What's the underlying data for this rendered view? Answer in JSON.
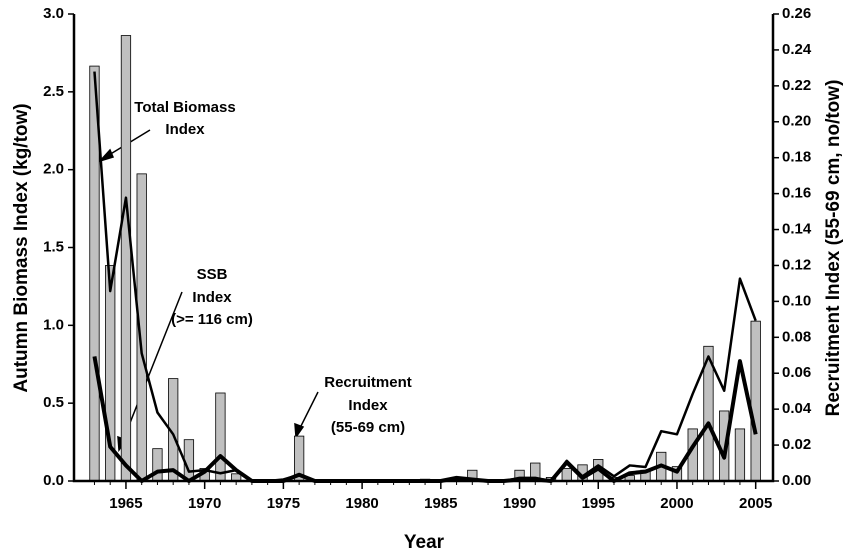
{
  "chart_data": {
    "type": "combo",
    "xlabel": "Year",
    "ylabel": "Autumn Biomass Index (kg/tow)",
    "y2label": "Recruitment Index (55-69 cm, no/tow)",
    "x": [
      1963,
      1964,
      1965,
      1966,
      1967,
      1968,
      1969,
      1970,
      1971,
      1972,
      1973,
      1974,
      1975,
      1976,
      1977,
      1978,
      1979,
      1980,
      1981,
      1982,
      1983,
      1984,
      1985,
      1986,
      1987,
      1988,
      1989,
      1990,
      1991,
      1992,
      1993,
      1994,
      1995,
      1996,
      1997,
      1998,
      1999,
      2000,
      2001,
      2002,
      2003,
      2004,
      2005
    ],
    "xlim": [
      1961.7,
      2006.1
    ],
    "xticks": [
      1965,
      1970,
      1975,
      1980,
      1985,
      1990,
      1995,
      2000,
      2005
    ],
    "ylim": [
      0,
      3
    ],
    "yticks": [
      {
        "value": 0,
        "label": "0.0"
      },
      0.5,
      {
        "value": 1,
        "label": "1.0"
      },
      1.5,
      {
        "value": 2,
        "label": "2.0"
      },
      2.5,
      {
        "value": 3,
        "label": "3.0"
      }
    ],
    "y2lim": [
      0,
      0.26
    ],
    "y2ticks": [
      {
        "value": 0,
        "label": "0.00"
      },
      0.02,
      0.04,
      0.06,
      0.08,
      {
        "value": 0.1,
        "label": "0.10"
      },
      0.12,
      0.14,
      0.16,
      0.18,
      {
        "value": 0.2,
        "label": "0.20"
      },
      0.22,
      0.24,
      0.26
    ],
    "series": [
      {
        "name": "Recruitment Index",
        "type": "bar",
        "axis": "y2",
        "color": "#c0c0c0",
        "values": [
          0.231,
          0.12,
          0.248,
          0.171,
          0.018,
          0.057,
          0.023,
          0.007,
          0.049,
          0.004,
          0,
          0,
          0,
          0.025,
          0,
          0,
          0,
          0,
          0,
          0,
          0,
          0.001,
          0,
          0.002,
          0.006,
          0,
          0,
          0.006,
          0.01,
          0.002,
          0.007,
          0.009,
          0.012,
          0.002,
          0.003,
          0.006,
          0.016,
          0.008,
          0.029,
          0.075,
          0.039,
          0.029,
          0.089
        ]
      },
      {
        "name": "Total Biomass Index",
        "type": "line",
        "color": "#000000",
        "width": 2.5,
        "values": [
          2.63,
          1.22,
          1.82,
          0.82,
          0.44,
          0.3,
          0.06,
          0.07,
          0.05,
          0.07,
          0,
          0,
          0.01,
          0.04,
          0,
          0,
          0,
          0,
          0,
          0,
          0,
          0,
          0,
          0.02,
          0.01,
          0,
          0,
          0.02,
          0.02,
          0,
          0.13,
          0.03,
          0.1,
          0.03,
          0.1,
          0.09,
          0.32,
          0.3,
          0.56,
          0.8,
          0.58,
          1.3,
          1.03
        ]
      },
      {
        "name": "SSB Index",
        "type": "line",
        "color": "#000000",
        "width": 4,
        "values": [
          0.8,
          0.22,
          0.1,
          0,
          0.06,
          0.07,
          0,
          0.06,
          0.16,
          0.07,
          0,
          0,
          0,
          0.04,
          0,
          0,
          0,
          0,
          0,
          0,
          0,
          0,
          0,
          0.02,
          0.01,
          0,
          0,
          0.01,
          0.01,
          0,
          0.12,
          0.02,
          0.08,
          0,
          0.05,
          0.06,
          0.1,
          0.06,
          0.22,
          0.37,
          0.15,
          0.77,
          0.3
        ]
      }
    ],
    "annotations": [
      [
        "Total Biomass",
        "Index"
      ],
      [
        "SSB",
        "Index",
        "(>= 116 cm)"
      ],
      [
        "Recruitment",
        "Index",
        "(55-69 cm)"
      ]
    ]
  }
}
